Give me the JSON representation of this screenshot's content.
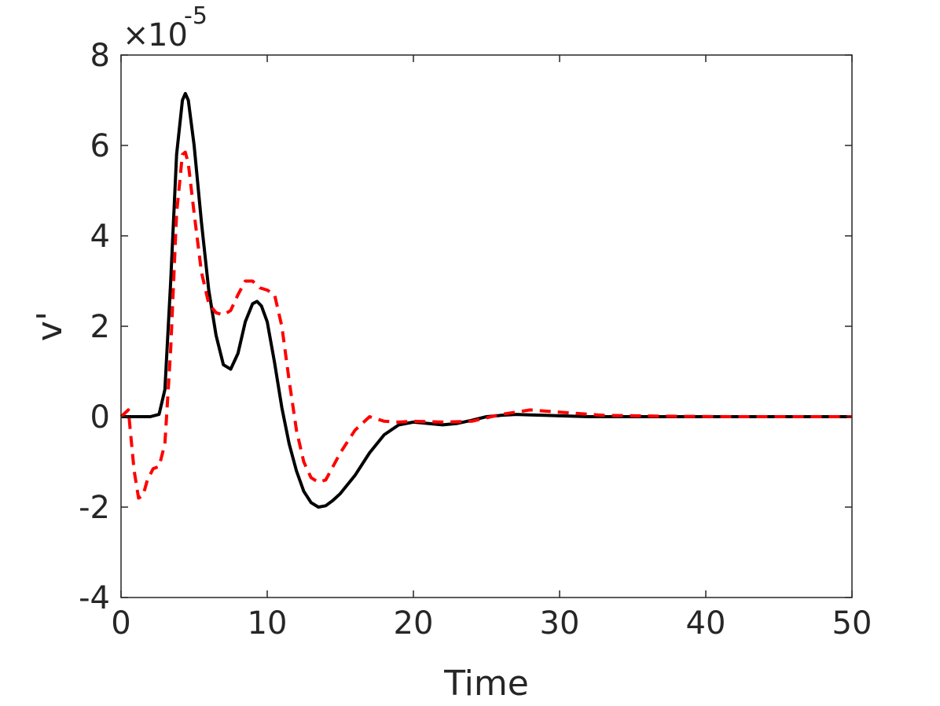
{
  "chart_data": {
    "type": "line",
    "title": "",
    "xlabel": "Time",
    "ylabel": "v'",
    "xlim": [
      0,
      50
    ],
    "ylim": [
      -4,
      8
    ],
    "xticks": [
      0,
      10,
      20,
      30,
      40,
      50
    ],
    "yticks": [
      -4,
      -2,
      0,
      2,
      4,
      6,
      8
    ],
    "xtick_labels": [
      "0",
      "10",
      "20",
      "30",
      "40",
      "50"
    ],
    "ytick_labels": [
      "-4",
      "-2",
      "0",
      "2",
      "4",
      "6",
      "8"
    ],
    "y_multiplier": {
      "base": "10",
      "exponent": "-5"
    },
    "grid": false,
    "legend": "none",
    "series": [
      {
        "style": "solid",
        "color": "#000000",
        "x": [
          0,
          1,
          2,
          2.6,
          3.0,
          3.4,
          3.8,
          4.2,
          4.4,
          4.6,
          5.0,
          5.5,
          6.0,
          6.5,
          7.0,
          7.5,
          8.0,
          8.5,
          9.0,
          9.3,
          9.6,
          10.0,
          10.5,
          11.0,
          11.5,
          12.0,
          12.5,
          13.0,
          13.5,
          14.0,
          14.5,
          15.0,
          16.0,
          17.0,
          18.0,
          19.0,
          20.0,
          21.0,
          22.0,
          23.0,
          24.0,
          25.0,
          26.0,
          27.0,
          28.0,
          29.0,
          30.0,
          32.0,
          35.0,
          40.0,
          45.0,
          50.0
        ],
        "y": [
          0,
          0,
          0,
          0.05,
          0.6,
          3.0,
          5.8,
          7.0,
          7.15,
          7.0,
          6.0,
          4.3,
          2.8,
          1.8,
          1.15,
          1.05,
          1.4,
          2.1,
          2.5,
          2.55,
          2.45,
          2.1,
          1.2,
          0.2,
          -0.6,
          -1.2,
          -1.65,
          -1.9,
          -2.0,
          -1.97,
          -1.85,
          -1.7,
          -1.3,
          -0.8,
          -0.4,
          -0.18,
          -0.12,
          -0.15,
          -0.18,
          -0.15,
          -0.08,
          0.0,
          0.03,
          0.05,
          0.04,
          0.03,
          0.02,
          0.0,
          0.0,
          0.0,
          0.0,
          0.0
        ]
      },
      {
        "style": "dashed",
        "color": "#ff0000",
        "x": [
          0,
          0.5,
          0.9,
          1.2,
          1.5,
          1.8,
          2.2,
          2.6,
          3.0,
          3.4,
          3.8,
          4.2,
          4.4,
          4.6,
          5.0,
          5.5,
          6.0,
          6.5,
          7.0,
          7.5,
          8.0,
          8.5,
          9.0,
          9.5,
          10.0,
          10.5,
          11.0,
          11.5,
          12.0,
          12.5,
          13.0,
          13.5,
          14.0,
          14.5,
          15.0,
          16.0,
          17.0,
          18.0,
          19.0,
          20.0,
          22.0,
          24.0,
          26.0,
          28.0,
          30.0,
          33.0,
          37.0,
          42.0,
          50.0
        ],
        "y": [
          0,
          0.15,
          -1.2,
          -1.8,
          -1.75,
          -1.4,
          -1.15,
          -1.1,
          -0.6,
          1.5,
          4.5,
          5.8,
          5.85,
          5.6,
          4.5,
          3.2,
          2.5,
          2.3,
          2.25,
          2.35,
          2.7,
          3.0,
          3.0,
          2.85,
          2.8,
          2.7,
          2.0,
          0.8,
          -0.3,
          -1.0,
          -1.35,
          -1.45,
          -1.4,
          -1.1,
          -0.8,
          -0.3,
          0.0,
          -0.1,
          -0.12,
          -0.1,
          -0.12,
          -0.1,
          0.05,
          0.15,
          0.1,
          0.03,
          0.01,
          0.0,
          0.0
        ]
      }
    ]
  }
}
